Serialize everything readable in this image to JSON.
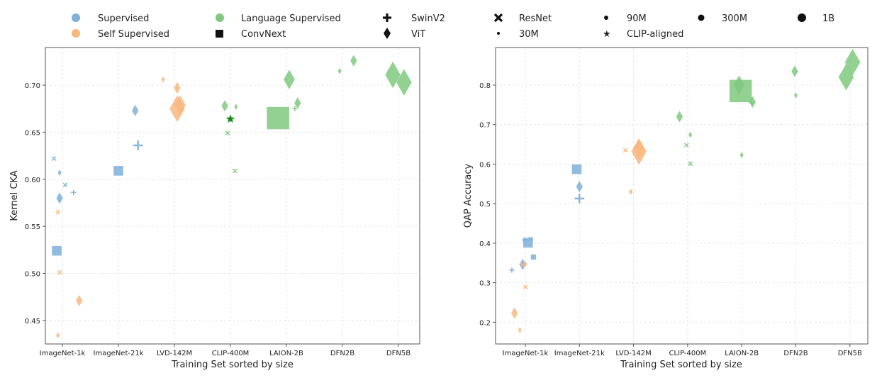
{
  "colors": {
    "supervised": "#7fb0d9",
    "self_supervised": "#f8b77f",
    "language_supervised": "#7fc97f",
    "clip_aligned": "#138a13",
    "grid": "#e6e6e6",
    "axis": "#555555"
  },
  "legend": {
    "categories": [
      {
        "label": "Supervised",
        "color_key": "supervised"
      },
      {
        "label": "Self Supervised",
        "color_key": "self_supervised"
      },
      {
        "label": "Language Supervised",
        "color_key": "language_supervised"
      }
    ],
    "architectures": [
      {
        "label": "ConvNext",
        "marker": "square"
      },
      {
        "label": "SwinV2",
        "marker": "plus"
      },
      {
        "label": "ViT",
        "marker": "diamond"
      },
      {
        "label": "ResNet",
        "marker": "x"
      }
    ],
    "sizes": [
      {
        "label": "30M",
        "size": "30M"
      },
      {
        "label": "90M",
        "size": "90M"
      },
      {
        "label": "300M",
        "size": "300M"
      },
      {
        "label": "1B",
        "size": "1B"
      }
    ],
    "clip_aligned": {
      "label": "CLIP-aligned",
      "marker": "star"
    }
  },
  "chart_data": [
    {
      "type": "scatter",
      "xlabel": "Training Set sorted by size",
      "ylabel": "Kernel CKA",
      "categories": [
        "ImageNet-1k",
        "ImageNet-21k",
        "LVD-142M",
        "CLIP-400M",
        "LAION-2B",
        "DFN2B",
        "DFN5B"
      ],
      "ylim": [
        0.425,
        0.74
      ],
      "yticks": [
        "0.45",
        "0.50",
        "0.55",
        "0.60",
        "0.65",
        "0.70"
      ],
      "grid": true,
      "points": [
        {
          "x": -0.15,
          "y": 0.622,
          "cat": "supervised",
          "marker": "x",
          "size": "30M"
        },
        {
          "x": -0.05,
          "y": 0.607,
          "cat": "supervised",
          "marker": "diamond",
          "size": "30M"
        },
        {
          "x": 0.05,
          "y": 0.594,
          "cat": "supervised",
          "marker": "x",
          "size": "30M"
        },
        {
          "x": 0.2,
          "y": 0.586,
          "cat": "supervised",
          "marker": "plus",
          "size": "30M"
        },
        {
          "x": -0.05,
          "y": 0.58,
          "cat": "supervised",
          "marker": "diamond",
          "size": "90M"
        },
        {
          "x": -0.1,
          "y": 0.524,
          "cat": "supervised",
          "marker": "square",
          "size": "90M"
        },
        {
          "x": -0.08,
          "y": 0.565,
          "cat": "self_supervised",
          "marker": "x",
          "size": "30M"
        },
        {
          "x": -0.05,
          "y": 0.501,
          "cat": "self_supervised",
          "marker": "x",
          "size": "30M"
        },
        {
          "x": 0.3,
          "y": 0.471,
          "cat": "self_supervised",
          "marker": "diamond",
          "size": "90M"
        },
        {
          "x": -0.08,
          "y": 0.434,
          "cat": "self_supervised",
          "marker": "diamond",
          "size": "30M"
        },
        {
          "x": 1.3,
          "y": 0.673,
          "cat": "supervised",
          "marker": "diamond",
          "size": "90M"
        },
        {
          "x": 1.35,
          "y": 0.636,
          "cat": "supervised",
          "marker": "plus",
          "size": "90M"
        },
        {
          "x": 1.0,
          "y": 0.609,
          "cat": "supervised",
          "marker": "square",
          "size": "90M"
        },
        {
          "x": 1.8,
          "y": 0.706,
          "cat": "self_supervised",
          "marker": "diamond",
          "size": "30M"
        },
        {
          "x": 2.05,
          "y": 0.697,
          "cat": "self_supervised",
          "marker": "diamond",
          "size": "90M"
        },
        {
          "x": 2.1,
          "y": 0.679,
          "cat": "self_supervised",
          "marker": "diamond",
          "size": "300M"
        },
        {
          "x": 2.05,
          "y": 0.675,
          "cat": "self_supervised",
          "marker": "diamond",
          "size": "1B"
        },
        {
          "x": 2.9,
          "y": 0.678,
          "cat": "language_supervised",
          "marker": "diamond",
          "size": "90M"
        },
        {
          "x": 3.1,
          "y": 0.677,
          "cat": "language_supervised",
          "marker": "diamond",
          "size": "30M"
        },
        {
          "x": 2.95,
          "y": 0.649,
          "cat": "language_supervised",
          "marker": "x",
          "size": "30M"
        },
        {
          "x": 3.08,
          "y": 0.609,
          "cat": "language_supervised",
          "marker": "x",
          "size": "30M"
        },
        {
          "x": 3.0,
          "y": 0.664,
          "cat": "clip_aligned",
          "marker": "star",
          "size": "30M"
        },
        {
          "x": 3.85,
          "y": 0.665,
          "cat": "language_supervised",
          "marker": "square",
          "size": "1B"
        },
        {
          "x": 4.05,
          "y": 0.706,
          "cat": "language_supervised",
          "marker": "diamond",
          "size": "300M"
        },
        {
          "x": 4.2,
          "y": 0.681,
          "cat": "language_supervised",
          "marker": "diamond",
          "size": "90M"
        },
        {
          "x": 4.15,
          "y": 0.675,
          "cat": "language_supervised",
          "marker": "plus",
          "size": "30M"
        },
        {
          "x": 4.95,
          "y": 0.715,
          "cat": "language_supervised",
          "marker": "diamond",
          "size": "30M"
        },
        {
          "x": 5.2,
          "y": 0.726,
          "cat": "language_supervised",
          "marker": "diamond",
          "size": "90M"
        },
        {
          "x": 5.9,
          "y": 0.711,
          "cat": "language_supervised",
          "marker": "diamond",
          "size": "1B"
        },
        {
          "x": 6.1,
          "y": 0.703,
          "cat": "language_supervised",
          "marker": "diamond",
          "size": "1B"
        }
      ]
    },
    {
      "type": "scatter",
      "xlabel": "Training Set sorted by size",
      "ylabel": "QAP Accuracy",
      "categories": [
        "ImageNet-1k",
        "ImageNet-21k",
        "LVD-142M",
        "CLIP-400M",
        "LAION-2B",
        "DFN2B",
        "DFN5B"
      ],
      "ylim": [
        0.145,
        0.895
      ],
      "yticks": [
        "0.2",
        "0.3",
        "0.4",
        "0.5",
        "0.6",
        "0.7",
        "0.8"
      ],
      "grid": true,
      "points": [
        {
          "x": -0.25,
          "y": 0.332,
          "cat": "supervised",
          "marker": "plus",
          "size": "30M"
        },
        {
          "x": -0.05,
          "y": 0.346,
          "cat": "supervised",
          "marker": "diamond",
          "size": "90M"
        },
        {
          "x": -0.02,
          "y": 0.408,
          "cat": "supervised",
          "marker": "plus",
          "size": "30M"
        },
        {
          "x": 0.1,
          "y": 0.411,
          "cat": "supervised",
          "marker": "x",
          "size": "30M"
        },
        {
          "x": 0.05,
          "y": 0.401,
          "cat": "supervised",
          "marker": "square",
          "size": "90M"
        },
        {
          "x": 0.15,
          "y": 0.365,
          "cat": "supervised",
          "marker": "square",
          "size": "30M"
        },
        {
          "x": -0.05,
          "y": 0.345,
          "cat": "self_supervised",
          "marker": "x",
          "size": "30M"
        },
        {
          "x": 0.0,
          "y": 0.347,
          "cat": "self_supervised",
          "marker": "diamond",
          "size": "30M"
        },
        {
          "x": 0.0,
          "y": 0.289,
          "cat": "self_supervised",
          "marker": "x",
          "size": "30M"
        },
        {
          "x": -0.2,
          "y": 0.223,
          "cat": "self_supervised",
          "marker": "diamond",
          "size": "90M"
        },
        {
          "x": -0.1,
          "y": 0.18,
          "cat": "self_supervised",
          "marker": "diamond",
          "size": "30M"
        },
        {
          "x": 0.95,
          "y": 0.587,
          "cat": "supervised",
          "marker": "square",
          "size": "90M"
        },
        {
          "x": 1.0,
          "y": 0.543,
          "cat": "supervised",
          "marker": "diamond",
          "size": "90M"
        },
        {
          "x": 1.0,
          "y": 0.513,
          "cat": "supervised",
          "marker": "plus",
          "size": "90M"
        },
        {
          "x": 1.85,
          "y": 0.635,
          "cat": "self_supervised",
          "marker": "x",
          "size": "30M"
        },
        {
          "x": 2.08,
          "y": 0.645,
          "cat": "self_supervised",
          "marker": "diamond",
          "size": "90M"
        },
        {
          "x": 2.1,
          "y": 0.638,
          "cat": "self_supervised",
          "marker": "diamond",
          "size": "300M"
        },
        {
          "x": 2.1,
          "y": 0.632,
          "cat": "self_supervised",
          "marker": "diamond",
          "size": "1B"
        },
        {
          "x": 1.95,
          "y": 0.53,
          "cat": "self_supervised",
          "marker": "diamond",
          "size": "30M"
        },
        {
          "x": 2.85,
          "y": 0.72,
          "cat": "language_supervised",
          "marker": "diamond",
          "size": "90M"
        },
        {
          "x": 3.05,
          "y": 0.674,
          "cat": "language_supervised",
          "marker": "diamond",
          "size": "30M"
        },
        {
          "x": 2.98,
          "y": 0.648,
          "cat": "language_supervised",
          "marker": "x",
          "size": "30M"
        },
        {
          "x": 3.05,
          "y": 0.601,
          "cat": "language_supervised",
          "marker": "x",
          "size": "30M"
        },
        {
          "x": 3.98,
          "y": 0.785,
          "cat": "language_supervised",
          "marker": "square",
          "size": "1B"
        },
        {
          "x": 3.95,
          "y": 0.8,
          "cat": "language_supervised",
          "marker": "diamond",
          "size": "300M"
        },
        {
          "x": 4.2,
          "y": 0.757,
          "cat": "language_supervised",
          "marker": "diamond",
          "size": "90M"
        },
        {
          "x": 4.18,
          "y": 0.755,
          "cat": "language_supervised",
          "marker": "plus",
          "size": "30M"
        },
        {
          "x": 4.0,
          "y": 0.623,
          "cat": "language_supervised",
          "marker": "diamond",
          "size": "30M"
        },
        {
          "x": 4.98,
          "y": 0.835,
          "cat": "language_supervised",
          "marker": "diamond",
          "size": "90M"
        },
        {
          "x": 5.0,
          "y": 0.774,
          "cat": "language_supervised",
          "marker": "diamond",
          "size": "30M"
        },
        {
          "x": 6.05,
          "y": 0.858,
          "cat": "language_supervised",
          "marker": "diamond",
          "size": "1B"
        },
        {
          "x": 5.93,
          "y": 0.82,
          "cat": "language_supervised",
          "marker": "diamond",
          "size": "1B"
        }
      ]
    }
  ]
}
